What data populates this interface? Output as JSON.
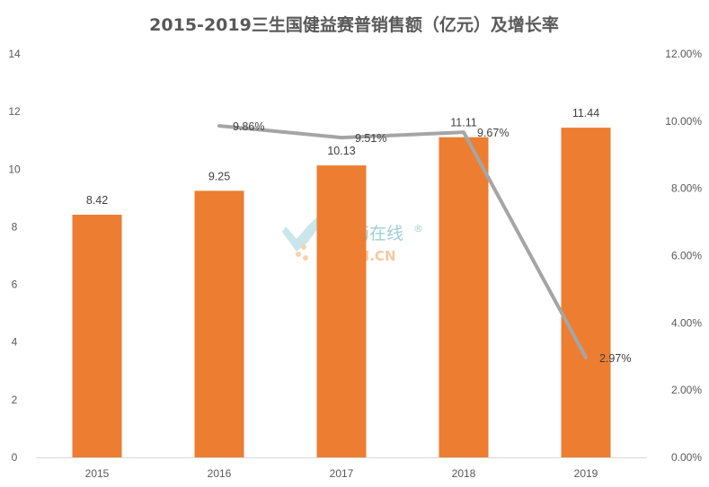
{
  "chart_data": {
    "type": "bar",
    "title": "2015-2019三生国健益赛普销售额（亿元）及增长率",
    "categories": [
      "2015",
      "2016",
      "2017",
      "2018",
      "2019"
    ],
    "series": [
      {
        "type": "bar",
        "values": [
          8.42,
          9.25,
          10.13,
          11.11,
          11.44
        ],
        "labels": [
          "8.42",
          "9.25",
          "10.13",
          "11.11",
          "11.44"
        ],
        "color": "#ED7D31",
        "axis": "left"
      },
      {
        "type": "line",
        "values": [
          null,
          9.86,
          9.51,
          9.67,
          2.97
        ],
        "labels": [
          "",
          "9.86%",
          "9.51%",
          "9.67%",
          "2.97%"
        ],
        "color": "#A5A5A5",
        "axis": "right"
      }
    ],
    "y_left": {
      "min": 0,
      "max": 14,
      "step": 2,
      "ticks": [
        "0",
        "2",
        "4",
        "6",
        "8",
        "10",
        "12",
        "14"
      ]
    },
    "y_right": {
      "min": 0,
      "max": 12,
      "step": 2,
      "ticks": [
        "0.00%",
        "2.00%",
        "4.00%",
        "6.00%",
        "8.00%",
        "10.00%",
        "12.00%"
      ]
    },
    "xlabel": "",
    "ylabel": "",
    "grid": false,
    "legend": "none"
  },
  "watermark": {
    "name_cn": "制药在线",
    "name_en": "CPhI.CN",
    "reg_mark": "®",
    "icon": "pharma-logo-icon"
  }
}
